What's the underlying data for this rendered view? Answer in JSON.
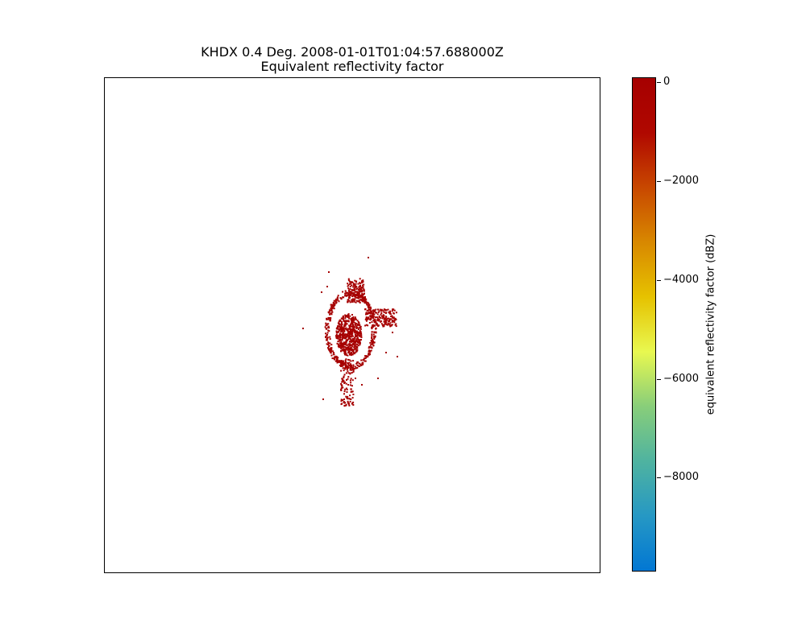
{
  "chart_data": {
    "type": "heatmap",
    "title": "KHDX 0.4 Deg. 2008-01-01T01:04:57.688000Z",
    "subtitle": "Equivalent reflectivity factor",
    "xlabel": "",
    "ylabel": "",
    "grid": false,
    "colorbar": {
      "label": "equivalent reflectivity factor (dBZ)",
      "range": [
        -9900,
        100
      ],
      "ticks": [
        0,
        -2000,
        -4000,
        -6000,
        -8000
      ],
      "tick_labels": [
        "0",
        "−2000",
        "−4000",
        "−6000",
        "−8000"
      ],
      "colors": [
        "#0277d3",
        "#2698c4",
        "#4fb3a0",
        "#88ce7a",
        "#e8f850",
        "#e6c200",
        "#d88800",
        "#c84800",
        "#b00800",
        "#a60000"
      ],
      "location": "right"
    },
    "echo_color": "#a60000"
  }
}
